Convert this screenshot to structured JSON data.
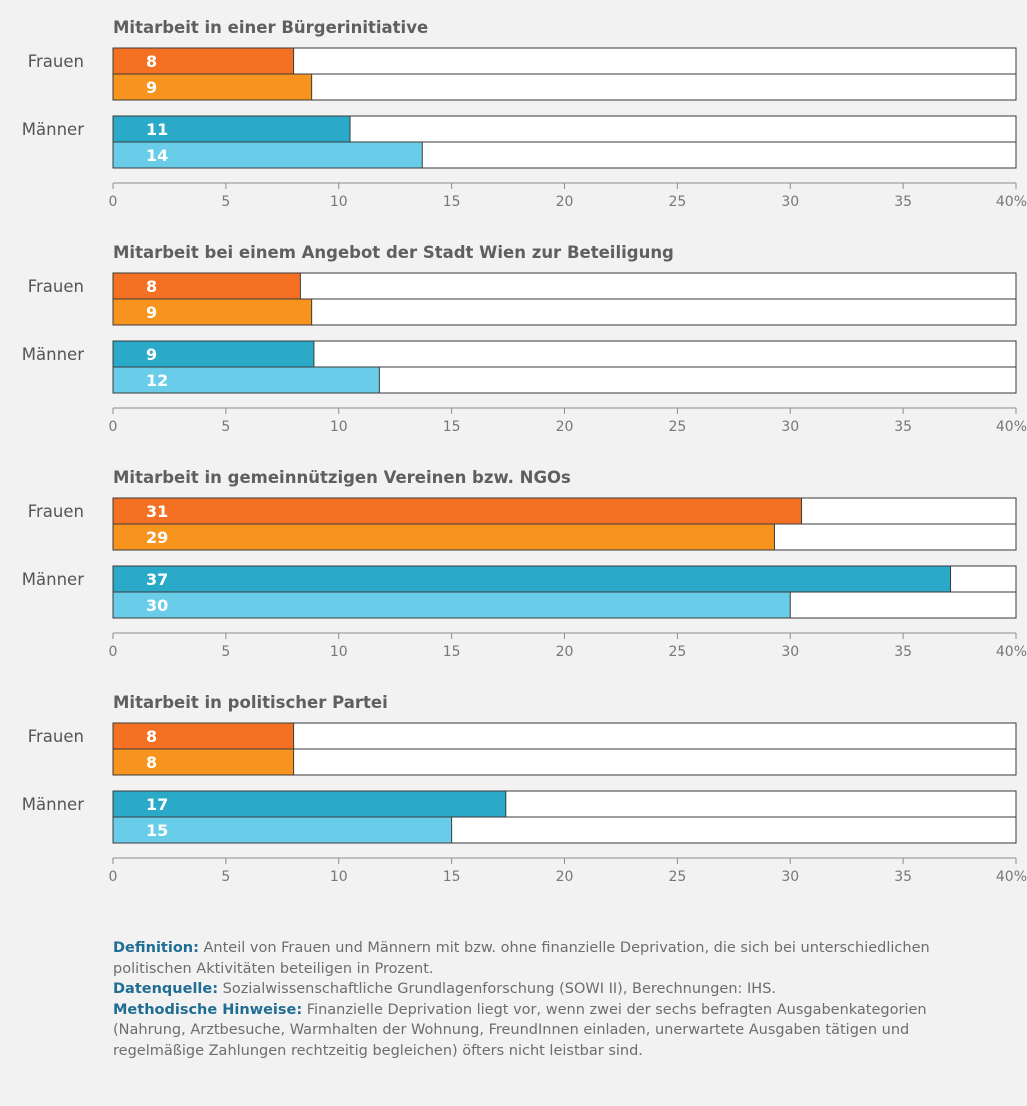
{
  "chart_data": [
    {
      "type": "bar",
      "title": "Mitarbeit  in einer Bürgerinitiative",
      "groups": [
        {
          "label": "Frauen",
          "values": [
            8,
            9
          ],
          "bar_lengths": [
            8.0,
            8.8
          ]
        },
        {
          "label": "Männer",
          "values": [
            11,
            14
          ],
          "bar_lengths": [
            10.5,
            13.7
          ]
        }
      ],
      "xlim": [
        0,
        40
      ],
      "xticks": [
        "0",
        "5",
        "10",
        "15",
        "20",
        "25",
        "30",
        "35",
        "40%"
      ]
    },
    {
      "type": "bar",
      "title": "Mitarbeit bei einem Angebot der Stadt Wien zur Beteiligung",
      "groups": [
        {
          "label": "Frauen",
          "values": [
            8,
            9
          ],
          "bar_lengths": [
            8.3,
            8.8
          ]
        },
        {
          "label": "Männer",
          "values": [
            9,
            12
          ],
          "bar_lengths": [
            8.9,
            11.8
          ]
        }
      ],
      "xlim": [
        0,
        40
      ],
      "xticks": [
        "0",
        "5",
        "10",
        "15",
        "20",
        "25",
        "30",
        "35",
        "40%"
      ]
    },
    {
      "type": "bar",
      "title": "Mitarbeit in gemeinnützigen Vereinen bzw. NGOs",
      "groups": [
        {
          "label": "Frauen",
          "values": [
            31,
            29
          ],
          "bar_lengths": [
            30.5,
            29.3
          ]
        },
        {
          "label": "Männer",
          "values": [
            37,
            30
          ],
          "bar_lengths": [
            37.1,
            30.0
          ]
        }
      ],
      "xlim": [
        0,
        40
      ],
      "xticks": [
        "0",
        "5",
        "10",
        "15",
        "20",
        "25",
        "30",
        "35",
        "40%"
      ]
    },
    {
      "type": "bar",
      "title": "Mitarbeit in politischer Partei",
      "groups": [
        {
          "label": "Frauen",
          "values": [
            8,
            8
          ],
          "bar_lengths": [
            8.0,
            8.0
          ]
        },
        {
          "label": "Männer",
          "values": [
            17,
            15
          ],
          "bar_lengths": [
            17.4,
            15.0
          ]
        }
      ],
      "xlim": [
        0,
        40
      ],
      "xticks": [
        "0",
        "5",
        "10",
        "15",
        "20",
        "25",
        "30",
        "35",
        "40%"
      ]
    }
  ],
  "colors": {
    "frauen_first": "#f47124",
    "frauen_second": "#f7941d",
    "maenner_first": "#2aa9c9",
    "maenner_second": "#69cde9",
    "bar_background": "#ffffff",
    "bar_outline": "#3a3a3a",
    "background": "#f2f2f2",
    "footer_term": "#1f6d92"
  },
  "footer": {
    "definition_term": "Definition:",
    "definition_text": " Anteil von Frauen und Männern mit bzw. ohne finanzielle Deprivation, die sich bei unterschiedlichen politischen Aktivitäten beteiligen in Prozent.",
    "source_term": "Datenquelle:",
    "source_text": " Sozialwissenschaftliche Grundlagenforschung (SOWI II), Berechnungen: IHS.",
    "method_term": "Methodische Hinweise:",
    "method_text": " Finanzielle Deprivation liegt vor, wenn zwei der sechs befragten Ausgabenkategorien (Nahrung, Arztbesuche, Warmhalten der Wohnung, FreundInnen einladen, unerwartete Ausgaben tätigen und regelmäßige Zahlungen rechtzeitig begleichen) öfters nicht leistbar sind."
  }
}
